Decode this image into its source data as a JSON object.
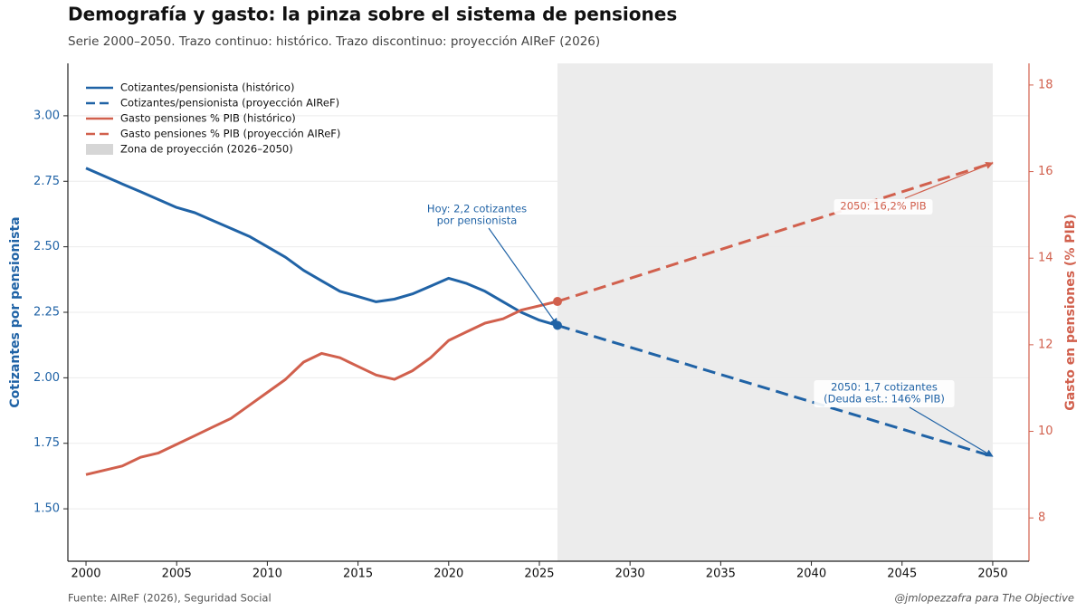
{
  "chart_data": {
    "type": "line",
    "title": "Demografía y gasto: la pinza sobre el sistema de pensiones",
    "subtitle": "Serie 2000–2050. Trazo continuo: histórico. Trazo discontinuo: proyección AIReF (2026)",
    "source": "Fuente: AIReF (2026), Seguridad Social",
    "credit": "@jmlopezzafra para The Objective",
    "y_label": "Cotizantes por pensionista",
    "y2_label": "Gasto en pensiones (% PIB)",
    "xlim": [
      1999,
      2052
    ],
    "xticks": [
      2000,
      2005,
      2010,
      2015,
      2020,
      2025,
      2030,
      2035,
      2040,
      2045,
      2050
    ],
    "ylim": [
      1.3,
      3.2
    ],
    "yticks": [
      {
        "value": 1.5,
        "label": "1.50"
      },
      1.75,
      {
        "value": 2,
        "label": "2.00"
      },
      2.25,
      {
        "value": 2.5,
        "label": "2.50"
      },
      2.75,
      {
        "value": 3,
        "label": "3.00"
      }
    ],
    "y2lim": [
      7,
      18.5
    ],
    "y2ticks": [
      8,
      10,
      12,
      14,
      16,
      18
    ],
    "grid": true,
    "legend": "upper left",
    "span": {
      "label": "Zona de proyección (2026–2050)",
      "range": [
        2026,
        2050
      ],
      "color": "#ececec"
    },
    "series": [
      {
        "name": "Cotizantes/pensionista (histórico)",
        "color": "#2063a6",
        "axis": "y",
        "dashed": false,
        "x": [
          2000,
          2001,
          2002,
          2003,
          2004,
          2005,
          2006,
          2007,
          2008,
          2009,
          2010,
          2011,
          2012,
          2013,
          2014,
          2015,
          2016,
          2017,
          2018,
          2019,
          2020,
          2021,
          2022,
          2023,
          2024,
          2025,
          2026
        ],
        "values": [
          2.8,
          2.77,
          2.74,
          2.71,
          2.68,
          2.65,
          2.63,
          2.6,
          2.57,
          2.54,
          2.5,
          2.46,
          2.41,
          2.37,
          2.33,
          2.31,
          2.29,
          2.3,
          2.32,
          2.35,
          2.38,
          2.36,
          2.33,
          2.29,
          2.25,
          2.22,
          2.2
        ]
      },
      {
        "name": "Cotizantes/pensionista (proyección AIReF)",
        "color": "#2063a6",
        "axis": "y",
        "dashed": true,
        "start_marker": true,
        "x": [
          2026,
          2050
        ],
        "values": [
          2.2,
          1.7
        ]
      },
      {
        "name": "Gasto pensiones % PIB (histórico)",
        "color": "#d1604d",
        "axis": "y2",
        "dashed": false,
        "x": [
          2000,
          2001,
          2002,
          2003,
          2004,
          2005,
          2006,
          2007,
          2008,
          2009,
          2010,
          2011,
          2012,
          2013,
          2014,
          2015,
          2016,
          2017,
          2018,
          2019,
          2020,
          2021,
          2022,
          2023,
          2024,
          2025,
          2026
        ],
        "values": [
          9.0,
          9.1,
          9.2,
          9.4,
          9.5,
          9.7,
          9.9,
          10.1,
          10.3,
          10.6,
          10.9,
          11.2,
          11.6,
          11.8,
          11.7,
          11.5,
          11.3,
          11.2,
          11.4,
          11.7,
          12.1,
          12.3,
          12.5,
          12.6,
          12.8,
          12.9,
          13.0
        ]
      },
      {
        "name": "Gasto pensiones % PIB (proyección AIReF)",
        "color": "#d1604d",
        "axis": "y2",
        "dashed": true,
        "start_marker": true,
        "x": [
          2026,
          2050
        ],
        "values": [
          13.0,
          16.2
        ]
      }
    ],
    "annotations": [
      {
        "text": [
          "Hoy: 2,2 cotizantes",
          "por pensionista"
        ],
        "x": 2026,
        "y": 2.2,
        "axis": "y",
        "color": "#2063a6"
      },
      {
        "text": [
          "2050: 16,2% PIB"
        ],
        "x": 2050,
        "y": 16.2,
        "axis": "y2",
        "color": "#d1604d"
      },
      {
        "text": [
          "2050: 1,7 cotizantes",
          "(Deuda est.: 146% PIB)"
        ],
        "x": 2050,
        "y": 1.7,
        "axis": "y",
        "color": "#2063a6"
      }
    ]
  }
}
